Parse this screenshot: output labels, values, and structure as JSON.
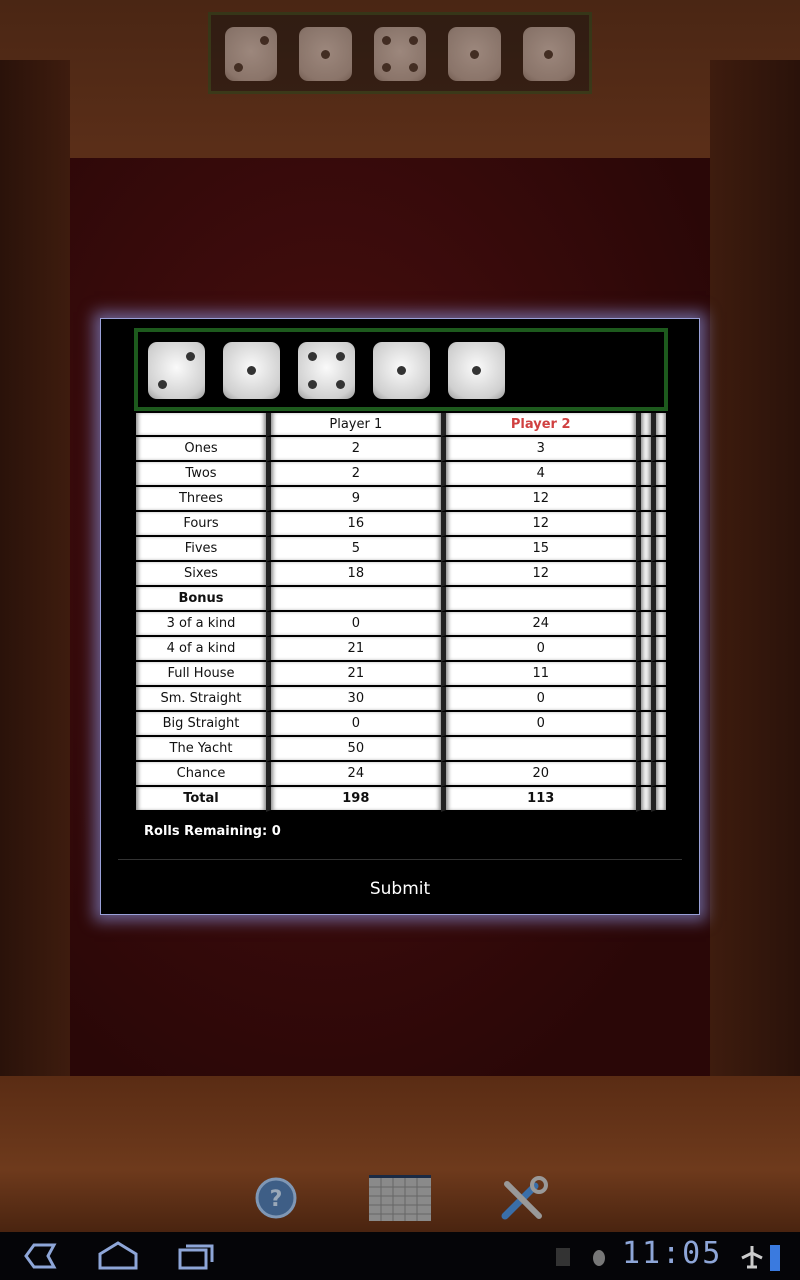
{
  "top_dice": [
    2,
    1,
    4,
    1,
    1
  ],
  "current_dice": [
    2,
    1,
    4,
    1,
    1
  ],
  "scorecard": {
    "headers": [
      "",
      "Player 1",
      "Player 2",
      "",
      ""
    ],
    "active_player_color": "#d04040",
    "rows": [
      {
        "label": "Ones",
        "p1": "2",
        "p2": "3"
      },
      {
        "label": "Twos",
        "p1": "2",
        "p2": "4"
      },
      {
        "label": "Threes",
        "p1": "9",
        "p2": "12"
      },
      {
        "label": "Fours",
        "p1": "16",
        "p2": "12"
      },
      {
        "label": "Fives",
        "p1": "5",
        "p2": "15"
      },
      {
        "label": "Sixes",
        "p1": "18",
        "p2": "12"
      },
      {
        "label": "Bonus",
        "p1": "",
        "p2": "",
        "bold": true
      },
      {
        "label": "3 of a kind",
        "p1": "0",
        "p2": "24"
      },
      {
        "label": "4 of a kind",
        "p1": "21",
        "p2": "0"
      },
      {
        "label": "Full House",
        "p1": "21",
        "p2": "11"
      },
      {
        "label": "Sm. Straight",
        "p1": "30",
        "p2": "0"
      },
      {
        "label": "Big Straight",
        "p1": "0",
        "p2": "0"
      },
      {
        "label": "The Yacht",
        "p1": "50",
        "p2": ""
      },
      {
        "label": "Chance",
        "p1": "24",
        "p2": "20"
      },
      {
        "label": "Total",
        "p1": "198",
        "p2": "113",
        "bold": true
      }
    ]
  },
  "rolls_remaining": "Rolls Remaining: 0",
  "submit_label": "Submit",
  "toolbar": [
    "help-icon",
    "scorecard-grid-icon",
    "settings-tools-icon"
  ],
  "status": {
    "time": "11:05"
  }
}
